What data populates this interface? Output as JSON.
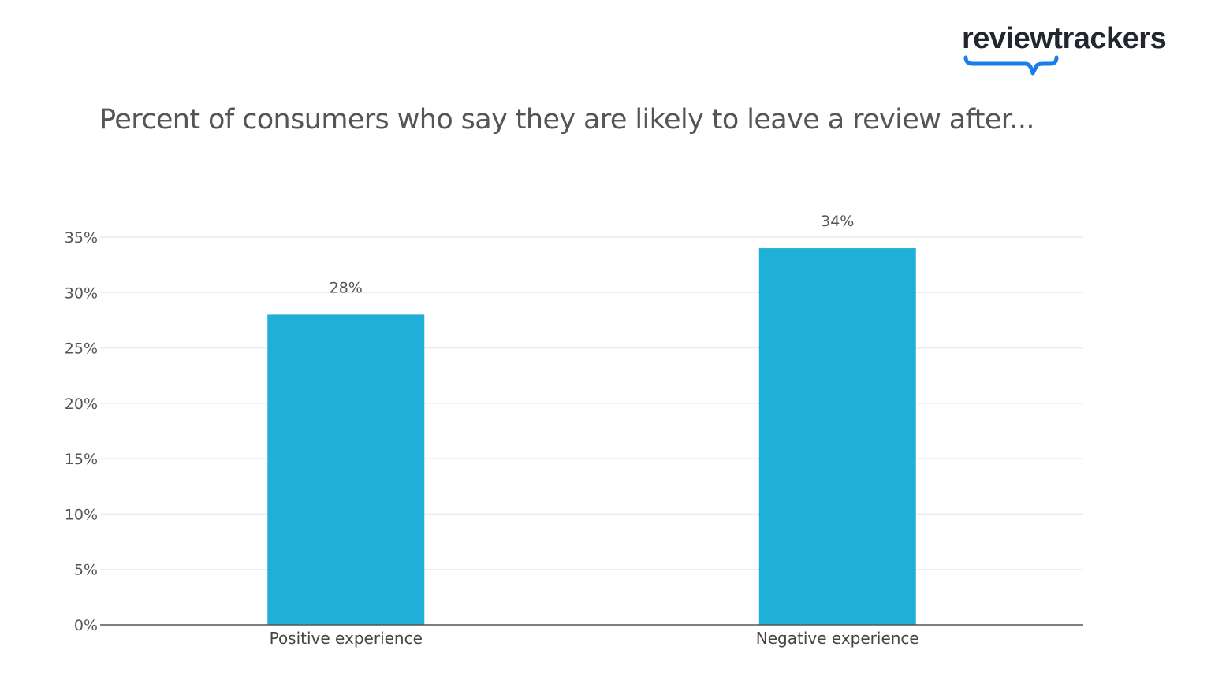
{
  "logo": {
    "text": "reviewtrackers",
    "underline_color": "#1a7ee8"
  },
  "chart_data": {
    "type": "bar",
    "title": "Percent of consumers who say they are likely to leave a review after...",
    "categories": [
      "Positive experience",
      "Negative experience"
    ],
    "values": [
      28,
      34
    ],
    "data_labels": [
      "28%",
      "34%"
    ],
    "xlabel": "",
    "ylabel": "",
    "ylim": [
      0,
      35
    ],
    "yticks": [
      0,
      5,
      10,
      15,
      20,
      25,
      30,
      35
    ],
    "ytick_labels": [
      "0%",
      "5%",
      "10%",
      "15%",
      "20%",
      "25%",
      "30%",
      "35%"
    ],
    "grid": true,
    "bar_color": "#1eb0d6"
  }
}
